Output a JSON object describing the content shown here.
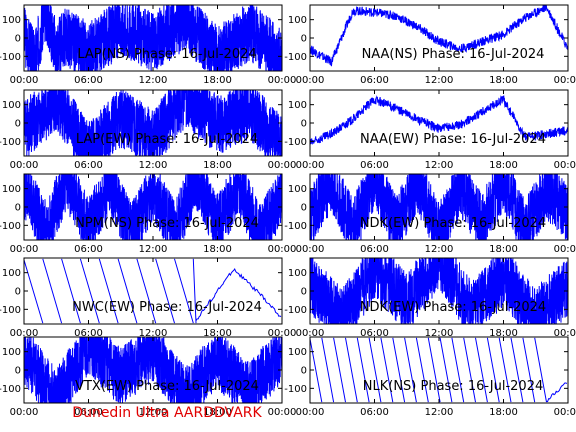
{
  "footer": "Dunedin Ultra AARDDVARK",
  "chart_data": [
    {
      "type": "line",
      "title": "LAP(NS) Phase: 16-Jul-2024",
      "x_ticks": [
        "00:00",
        "06:00",
        "12:00",
        "18:00",
        "00:00"
      ],
      "y_ticks": [
        "100",
        "0",
        "-100"
      ],
      "ylim": [
        -180,
        180
      ],
      "xlim_hours": [
        0,
        24
      ],
      "series": [
        {
          "color": "#0000ff",
          "pattern": "noise-dense",
          "points": [
            [
              0,
              20
            ],
            [
              1,
              -120
            ],
            [
              2,
              150
            ],
            [
              3,
              -60
            ],
            [
              4,
              10
            ],
            [
              6,
              -80
            ],
            [
              9,
              60
            ],
            [
              12,
              -20
            ],
            [
              15,
              90
            ],
            [
              18,
              -100
            ],
            [
              21,
              40
            ],
            [
              24,
              -110
            ]
          ]
        }
      ]
    },
    {
      "type": "line",
      "title": "NAA(NS) Phase: 16-Jul-2024",
      "x_ticks": [
        "00:00",
        "06:00",
        "12:00",
        "18:00",
        "00:00"
      ],
      "y_ticks": [
        "100",
        "0",
        "-100"
      ],
      "ylim": [
        -180,
        180
      ],
      "xlim_hours": [
        0,
        24
      ],
      "series": [
        {
          "color": "#0000ff",
          "pattern": "smooth-bands",
          "points": [
            [
              0,
              -60
            ],
            [
              2,
              -130
            ],
            [
              4,
              150
            ],
            [
              6,
              140
            ],
            [
              8,
              120
            ],
            [
              10,
              60
            ],
            [
              12,
              -20
            ],
            [
              14,
              -60
            ],
            [
              16,
              -20
            ],
            [
              18,
              20
            ],
            [
              20,
              110
            ],
            [
              22,
              170
            ],
            [
              24,
              -60
            ]
          ]
        }
      ]
    },
    {
      "type": "line",
      "title": "LAP(EW) Phase: 16-Jul-2024",
      "x_ticks": [
        "00:00",
        "06:00",
        "12:00",
        "18:00",
        "00:00"
      ],
      "y_ticks": [
        "100",
        "0",
        "-100"
      ],
      "ylim": [
        -180,
        180
      ],
      "xlim_hours": [
        0,
        24
      ],
      "series": [
        {
          "color": "#0000ff",
          "pattern": "noise-dense",
          "points": [
            [
              0,
              -40
            ],
            [
              3,
              120
            ],
            [
              6,
              -150
            ],
            [
              9,
              30
            ],
            [
              12,
              -90
            ],
            [
              15,
              140
            ],
            [
              18,
              -10
            ],
            [
              21,
              70
            ],
            [
              24,
              -130
            ]
          ]
        }
      ]
    },
    {
      "type": "line",
      "title": "NAA(EW) Phase: 16-Jul-2024",
      "x_ticks": [
        "00:00",
        "06:00",
        "12:00",
        "18:00",
        "00:00"
      ],
      "y_ticks": [
        "100",
        "0",
        "-100"
      ],
      "ylim": [
        -180,
        180
      ],
      "xlim_hours": [
        0,
        24
      ],
      "series": [
        {
          "color": "#0000ff",
          "pattern": "smooth-bands",
          "points": [
            [
              0,
              -110
            ],
            [
              2,
              -60
            ],
            [
              4,
              20
            ],
            [
              6,
              130
            ],
            [
              8,
              80
            ],
            [
              10,
              20
            ],
            [
              12,
              -30
            ],
            [
              14,
              -10
            ],
            [
              16,
              60
            ],
            [
              18,
              130
            ],
            [
              20,
              -80
            ],
            [
              22,
              -60
            ],
            [
              24,
              -40
            ]
          ]
        }
      ]
    },
    {
      "type": "line",
      "title": "NPM(NS) Phase: 16-Jul-2024",
      "x_ticks": [
        "00:00",
        "06:00",
        "12:00",
        "18:00",
        "00:00"
      ],
      "y_ticks": [
        "100",
        "0",
        "-100"
      ],
      "ylim": [
        -180,
        180
      ],
      "xlim_hours": [
        0,
        24
      ],
      "series": [
        {
          "color": "#0000ff",
          "pattern": "wraps-dense",
          "points": [
            [
              0,
              100
            ],
            [
              2,
              -120
            ],
            [
              4,
              140
            ],
            [
              6,
              -100
            ],
            [
              8,
              120
            ],
            [
              10,
              -140
            ],
            [
              12,
              90
            ],
            [
              14,
              -130
            ],
            [
              16,
              150
            ],
            [
              18,
              -90
            ],
            [
              20,
              110
            ],
            [
              22,
              -150
            ],
            [
              24,
              60
            ]
          ]
        }
      ]
    },
    {
      "type": "line",
      "title": "NDK(EW) Phase: 16-Jul-2024",
      "x_ticks": [
        "00:00",
        "06:00",
        "12:00",
        "18:00",
        "00:00"
      ],
      "y_ticks": [
        "100",
        "0",
        "-100"
      ],
      "ylim": [
        -180,
        180
      ],
      "xlim_hours": [
        0,
        24
      ],
      "series": [
        {
          "color": "#0000ff",
          "pattern": "wraps-dense",
          "points": [
            [
              0,
              -60
            ],
            [
              2,
              140
            ],
            [
              4,
              -120
            ],
            [
              6,
              160
            ],
            [
              8,
              -100
            ],
            [
              10,
              130
            ],
            [
              12,
              -140
            ],
            [
              14,
              110
            ],
            [
              16,
              -90
            ],
            [
              18,
              150
            ],
            [
              20,
              -130
            ],
            [
              22,
              100
            ],
            [
              24,
              -50
            ]
          ]
        }
      ]
    },
    {
      "type": "line",
      "title": "NWC(EW) Phase: 16-Jul-2024",
      "x_ticks": [
        "00:00",
        "06:00",
        "12:00",
        "18:00",
        "00:00"
      ],
      "y_ticks": [
        "100",
        "0",
        "-100"
      ],
      "ylim": [
        -180,
        180
      ],
      "xlim_hours": [
        0,
        24
      ],
      "series": [
        {
          "color": "#0000ff",
          "pattern": "sawtooth",
          "period_hours": 1.75,
          "points": [
            [
              0,
              180
            ],
            [
              1.75,
              -180
            ],
            [
              3.5,
              -180
            ],
            [
              5.25,
              -180
            ],
            [
              7,
              -180
            ],
            [
              8.75,
              -180
            ],
            [
              10.5,
              -180
            ],
            [
              12.25,
              -180
            ],
            [
              14,
              -180
            ],
            [
              15.75,
              -180
            ],
            [
              19.5,
              120
            ],
            [
              22,
              -20
            ],
            [
              24,
              -150
            ]
          ]
        }
      ]
    },
    {
      "type": "line",
      "title": "NDK(EW) Phase: 16-Jul-2024",
      "x_ticks": [
        "00:00",
        "06:00",
        "12:00",
        "18:00",
        "00:00"
      ],
      "y_ticks": [
        "100",
        "0",
        "-100"
      ],
      "ylim": [
        -180,
        180
      ],
      "xlim_hours": [
        0,
        24
      ],
      "series": [
        {
          "color": "#0000ff",
          "pattern": "noise-dense",
          "points": [
            [
              0,
              40
            ],
            [
              3,
              -150
            ],
            [
              6,
              120
            ],
            [
              9,
              -60
            ],
            [
              12,
              170
            ],
            [
              15,
              -110
            ],
            [
              18,
              80
            ],
            [
              21,
              -140
            ],
            [
              24,
              20
            ]
          ]
        }
      ]
    },
    {
      "type": "line",
      "title": "VTX(EW) Phase: 16-Jul-2024",
      "x_ticks": [
        "00:00",
        "06:00",
        "12:00",
        "18:00",
        "00:00"
      ],
      "y_ticks": [
        "100",
        "0",
        "-100"
      ],
      "ylim": [
        -180,
        180
      ],
      "xlim_hours": [
        0,
        24
      ],
      "series": [
        {
          "color": "#0000ff",
          "pattern": "noise-dense",
          "points": [
            [
              0,
              80
            ],
            [
              3,
              -160
            ],
            [
              6,
              140
            ],
            [
              9,
              -40
            ],
            [
              12,
              100
            ],
            [
              15,
              -150
            ],
            [
              18,
              60
            ],
            [
              21,
              -120
            ],
            [
              24,
              90
            ]
          ]
        }
      ]
    },
    {
      "type": "line",
      "title": "NLK(NS) Phase: 16-Jul-2024",
      "x_ticks": [
        "00:00",
        "06:00",
        "12:00",
        "18:00",
        "00:00"
      ],
      "y_ticks": [
        "100",
        "0",
        "-100"
      ],
      "ylim": [
        -180,
        180
      ],
      "xlim_hours": [
        0,
        24
      ],
      "series": [
        {
          "color": "#0000ff",
          "pattern": "sawtooth-fast",
          "period_hours": 1.1,
          "points": [
            [
              0,
              170
            ],
            [
              1.1,
              -170
            ],
            [
              2.2,
              -170
            ],
            [
              3.3,
              -170
            ],
            [
              4.4,
              -170
            ],
            [
              5.5,
              -170
            ],
            [
              6.6,
              -170
            ],
            [
              7.7,
              -170
            ],
            [
              8.8,
              -170
            ],
            [
              9.9,
              -170
            ],
            [
              11,
              -170
            ],
            [
              12.1,
              -170
            ],
            [
              13.2,
              -170
            ],
            [
              14.3,
              -170
            ],
            [
              15.4,
              -170
            ],
            [
              16.5,
              -170
            ],
            [
              17.6,
              -170
            ],
            [
              18.7,
              -170
            ],
            [
              19.8,
              -170
            ],
            [
              20.9,
              -170
            ],
            [
              22,
              -170
            ],
            [
              24,
              -60
            ]
          ]
        }
      ]
    }
  ]
}
